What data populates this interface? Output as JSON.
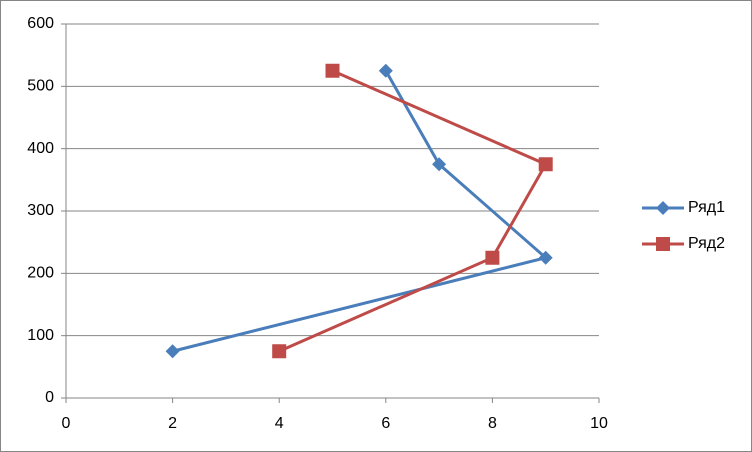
{
  "chart_data": {
    "type": "scatter-line",
    "series": [
      {
        "name": "Ряд1",
        "color": "#4a7ebb",
        "marker": "diamond",
        "x": [
          2,
          9,
          7,
          6
        ],
        "values": [
          75,
          225,
          375,
          525
        ]
      },
      {
        "name": "Ряд2",
        "color": "#be4b48",
        "marker": "square",
        "x": [
          4,
          8,
          9,
          5
        ],
        "values": [
          75,
          225,
          375,
          525
        ]
      }
    ],
    "xlim": [
      0,
      10
    ],
    "xticks": [
      0,
      2,
      4,
      6,
      8,
      10
    ],
    "ylim": [
      0,
      600
    ],
    "yticks": [
      0,
      100,
      200,
      300,
      400,
      500,
      600
    ],
    "grid": true,
    "legend": "right"
  }
}
